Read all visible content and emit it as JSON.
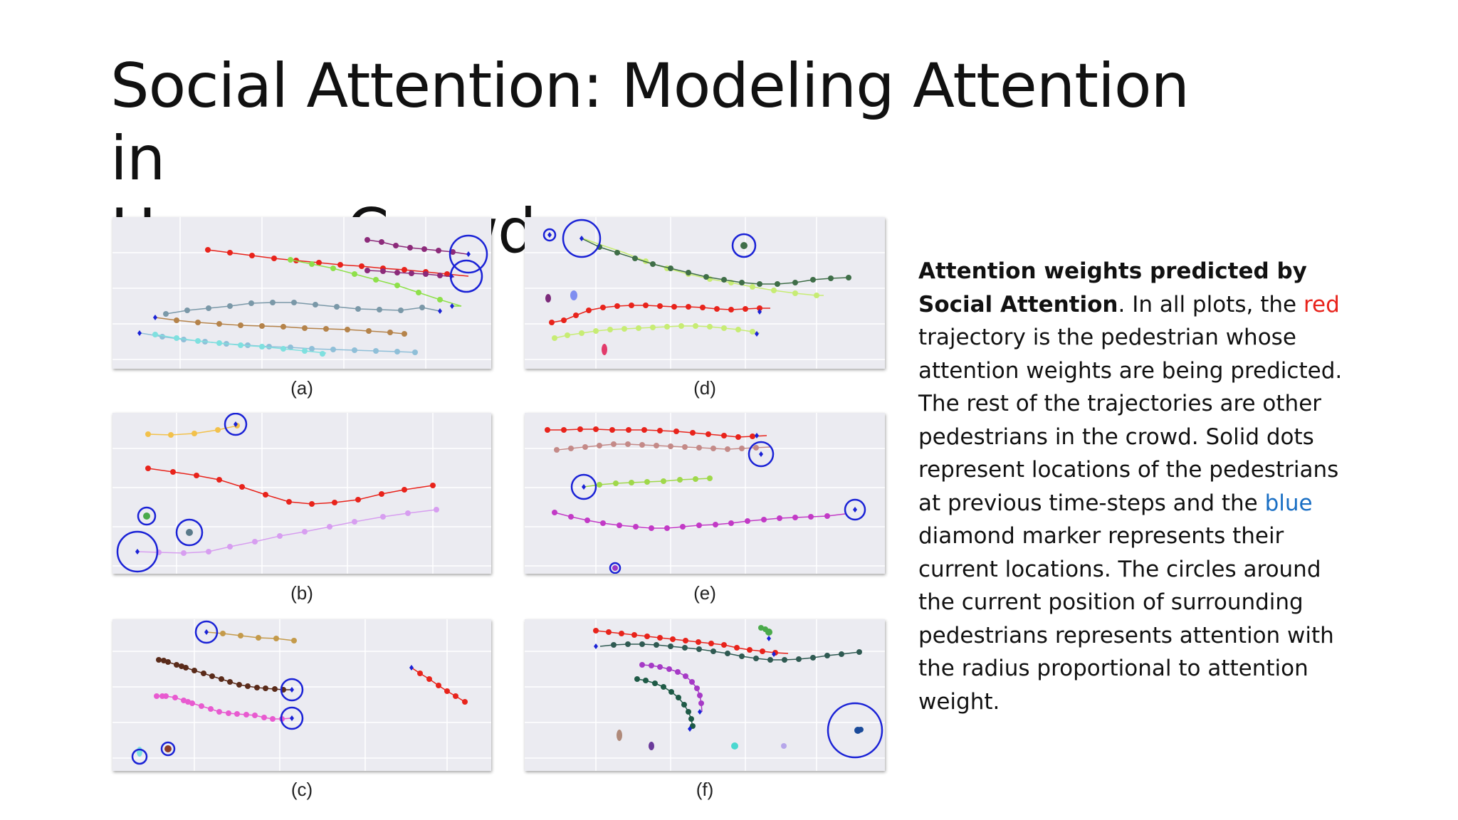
{
  "slide": {
    "title_line1": "Social Attention: Modeling Attention in",
    "title_line2": "Human Crowds"
  },
  "figure": {
    "captions": [
      "(a)",
      "(b)",
      "(c)",
      "(d)",
      "(e)",
      "(f)"
    ]
  },
  "description": {
    "bold": "Attention weights predicted by Social Attention",
    "text1": ". In all plots, the ",
    "red_word": "red",
    "text2": " trajectory is the pedestrian whose attention weights are being predicted. The rest of the trajectories are other pedestrians in the crowd. Solid dots represent locations of the pedestrians at previous time-steps and the ",
    "blue_word": "blue",
    "text3": " diamond marker represents their current locations. The circles around the current position of surrounding pedestrians represents attention with the radius proportional to attention weight."
  },
  "colors": {
    "red": "#e8231b",
    "blue": "#1a6fc4",
    "attention_circle": "#1a22d6",
    "marker": "#1a22d6",
    "panel_bg": "#ebebf1",
    "grid": "#ffffff"
  }
}
